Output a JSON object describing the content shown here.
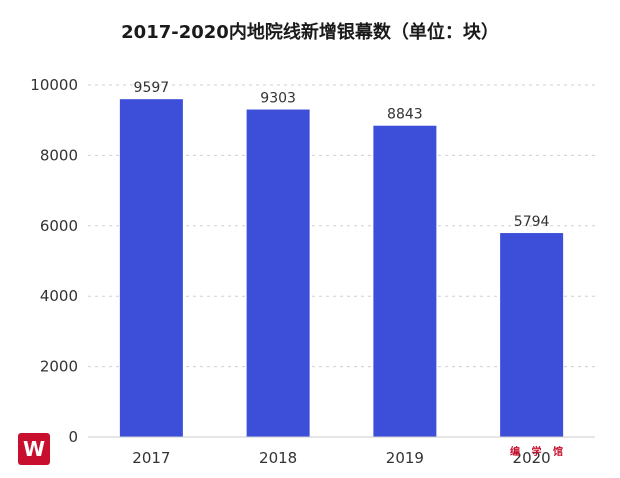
{
  "chart_data": {
    "type": "bar",
    "title": "2017-2020内地院线新增银幕数（单位：块）",
    "categories": [
      "2017",
      "2018",
      "2019",
      "2020"
    ],
    "values": [
      9597,
      9303,
      8843,
      5794
    ],
    "ylim": [
      0,
      10000
    ],
    "yticks": [
      0,
      2000,
      4000,
      6000,
      8000,
      10000
    ],
    "bar_color": "#3d4fd9",
    "grid": true,
    "xlabel": "",
    "ylabel": ""
  },
  "watermark": {
    "logo_letter": "W",
    "stamp_text": "编 学 馆"
  }
}
